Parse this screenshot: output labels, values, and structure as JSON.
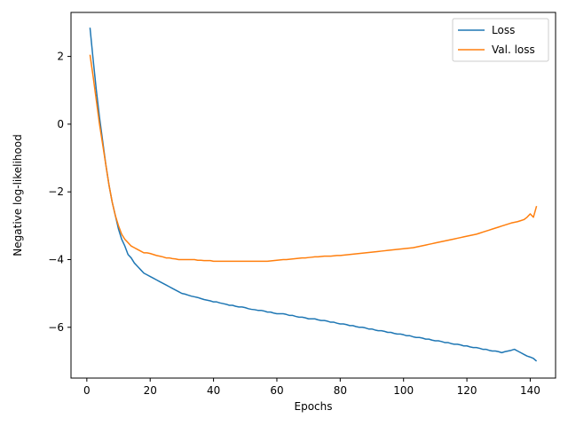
{
  "chart_data": {
    "type": "line",
    "title": "",
    "xlabel": "Epochs",
    "ylabel": "Negative log-likelihood",
    "xlim": [
      -5,
      148
    ],
    "ylim": [
      -7.5,
      3.3
    ],
    "xticks": [
      0,
      20,
      40,
      60,
      80,
      100,
      120,
      140
    ],
    "yticks": [
      2,
      0,
      -2,
      -4,
      -6
    ],
    "ytick_labels": [
      "2",
      "0",
      "−2",
      "−4",
      "−6"
    ],
    "grid": false,
    "legend": "top-right",
    "series": [
      {
        "name": "Loss",
        "color": "#1f77b4",
        "x": [
          1,
          2,
          3,
          4,
          5,
          6,
          7,
          8,
          9,
          10,
          11,
          12,
          13,
          14,
          15,
          16,
          17,
          18,
          19,
          20,
          21,
          22,
          23,
          24,
          25,
          26,
          27,
          28,
          29,
          30,
          31,
          32,
          33,
          34,
          35,
          36,
          37,
          38,
          39,
          40,
          41,
          42,
          43,
          44,
          45,
          46,
          47,
          48,
          49,
          50,
          51,
          52,
          53,
          54,
          55,
          56,
          57,
          58,
          59,
          60,
          61,
          62,
          63,
          64,
          65,
          66,
          67,
          68,
          69,
          70,
          71,
          72,
          73,
          74,
          75,
          76,
          77,
          78,
          79,
          80,
          81,
          82,
          83,
          84,
          85,
          86,
          87,
          88,
          89,
          90,
          91,
          92,
          93,
          94,
          95,
          96,
          97,
          98,
          99,
          100,
          101,
          102,
          103,
          104,
          105,
          106,
          107,
          108,
          109,
          110,
          111,
          112,
          113,
          114,
          115,
          116,
          117,
          118,
          119,
          120,
          121,
          122,
          123,
          124,
          125,
          126,
          127,
          128,
          129,
          130,
          131,
          132,
          133,
          134,
          135,
          136,
          137,
          138,
          139,
          140,
          141,
          142
        ],
        "values": [
          2.85,
          1.9,
          1.0,
          0.2,
          -0.5,
          -1.2,
          -1.8,
          -2.3,
          -2.7,
          -3.1,
          -3.4,
          -3.6,
          -3.85,
          -3.95,
          -4.1,
          -4.2,
          -4.3,
          -4.4,
          -4.45,
          -4.5,
          -4.55,
          -4.6,
          -4.65,
          -4.7,
          -4.75,
          -4.8,
          -4.85,
          -4.9,
          -4.95,
          -5.0,
          -5.02,
          -5.05,
          -5.08,
          -5.1,
          -5.12,
          -5.15,
          -5.18,
          -5.2,
          -5.22,
          -5.25,
          -5.25,
          -5.28,
          -5.3,
          -5.32,
          -5.35,
          -5.35,
          -5.38,
          -5.4,
          -5.4,
          -5.42,
          -5.45,
          -5.47,
          -5.48,
          -5.5,
          -5.5,
          -5.52,
          -5.55,
          -5.55,
          -5.58,
          -5.6,
          -5.6,
          -5.6,
          -5.62,
          -5.65,
          -5.65,
          -5.68,
          -5.7,
          -5.7,
          -5.72,
          -5.75,
          -5.75,
          -5.75,
          -5.78,
          -5.8,
          -5.8,
          -5.82,
          -5.85,
          -5.85,
          -5.88,
          -5.9,
          -5.9,
          -5.92,
          -5.95,
          -5.95,
          -5.98,
          -6.0,
          -6.0,
          -6.02,
          -6.05,
          -6.05,
          -6.08,
          -6.1,
          -6.1,
          -6.12,
          -6.15,
          -6.15,
          -6.18,
          -6.2,
          -6.2,
          -6.22,
          -6.25,
          -6.25,
          -6.28,
          -6.3,
          -6.3,
          -6.32,
          -6.35,
          -6.35,
          -6.38,
          -6.4,
          -6.4,
          -6.42,
          -6.45,
          -6.45,
          -6.48,
          -6.5,
          -6.5,
          -6.52,
          -6.55,
          -6.55,
          -6.58,
          -6.6,
          -6.6,
          -6.62,
          -6.65,
          -6.65,
          -6.68,
          -6.7,
          -6.7,
          -6.72,
          -6.75,
          -6.72,
          -6.7,
          -6.68,
          -6.65,
          -6.7,
          -6.75,
          -6.8,
          -6.85,
          -6.88,
          -6.92,
          -7.0
        ]
      },
      {
        "name": "Val. loss",
        "color": "#ff7f0e",
        "x": [
          1,
          2,
          3,
          4,
          5,
          6,
          7,
          8,
          9,
          10,
          11,
          12,
          13,
          14,
          15,
          16,
          17,
          18,
          19,
          20,
          21,
          22,
          23,
          24,
          25,
          26,
          27,
          28,
          29,
          30,
          31,
          32,
          33,
          34,
          35,
          36,
          37,
          38,
          39,
          40,
          41,
          42,
          43,
          44,
          45,
          46,
          47,
          48,
          49,
          50,
          51,
          52,
          53,
          54,
          55,
          56,
          57,
          58,
          59,
          60,
          61,
          62,
          63,
          64,
          65,
          66,
          67,
          68,
          69,
          70,
          71,
          72,
          73,
          74,
          75,
          76,
          77,
          78,
          79,
          80,
          81,
          82,
          83,
          84,
          85,
          86,
          87,
          88,
          89,
          90,
          91,
          92,
          93,
          94,
          95,
          96,
          97,
          98,
          99,
          100,
          101,
          102,
          103,
          104,
          105,
          106,
          107,
          108,
          109,
          110,
          111,
          112,
          113,
          114,
          115,
          116,
          117,
          118,
          119,
          120,
          121,
          122,
          123,
          124,
          125,
          126,
          127,
          128,
          129,
          130,
          131,
          132,
          133,
          134,
          135,
          136,
          137,
          138,
          139,
          140,
          141,
          142
        ],
        "values": [
          2.05,
          1.4,
          0.7,
          0.0,
          -0.6,
          -1.2,
          -1.8,
          -2.3,
          -2.7,
          -3.0,
          -3.25,
          -3.4,
          -3.5,
          -3.6,
          -3.65,
          -3.7,
          -3.75,
          -3.8,
          -3.8,
          -3.82,
          -3.85,
          -3.88,
          -3.9,
          -3.92,
          -3.95,
          -3.95,
          -3.97,
          -3.98,
          -4.0,
          -4.0,
          -4.0,
          -4.0,
          -4.0,
          -4.0,
          -4.02,
          -4.02,
          -4.03,
          -4.03,
          -4.03,
          -4.05,
          -4.05,
          -4.05,
          -4.05,
          -4.05,
          -4.05,
          -4.05,
          -4.05,
          -4.05,
          -4.05,
          -4.05,
          -4.05,
          -4.05,
          -4.05,
          -4.05,
          -4.05,
          -4.05,
          -4.05,
          -4.04,
          -4.03,
          -4.02,
          -4.01,
          -4.0,
          -4.0,
          -3.99,
          -3.98,
          -3.97,
          -3.96,
          -3.95,
          -3.95,
          -3.94,
          -3.93,
          -3.92,
          -3.92,
          -3.91,
          -3.9,
          -3.9,
          -3.9,
          -3.89,
          -3.88,
          -3.88,
          -3.87,
          -3.86,
          -3.85,
          -3.84,
          -3.83,
          -3.82,
          -3.81,
          -3.8,
          -3.79,
          -3.78,
          -3.77,
          -3.76,
          -3.75,
          -3.74,
          -3.73,
          -3.72,
          -3.71,
          -3.7,
          -3.69,
          -3.68,
          -3.67,
          -3.66,
          -3.65,
          -3.63,
          -3.61,
          -3.59,
          -3.57,
          -3.55,
          -3.53,
          -3.51,
          -3.49,
          -3.47,
          -3.45,
          -3.43,
          -3.41,
          -3.39,
          -3.37,
          -3.35,
          -3.33,
          -3.31,
          -3.29,
          -3.27,
          -3.25,
          -3.22,
          -3.19,
          -3.16,
          -3.13,
          -3.1,
          -3.07,
          -3.04,
          -3.01,
          -2.98,
          -2.95,
          -2.92,
          -2.9,
          -2.88,
          -2.85,
          -2.82,
          -2.75,
          -2.65,
          -2.75,
          -2.42
        ]
      }
    ]
  }
}
